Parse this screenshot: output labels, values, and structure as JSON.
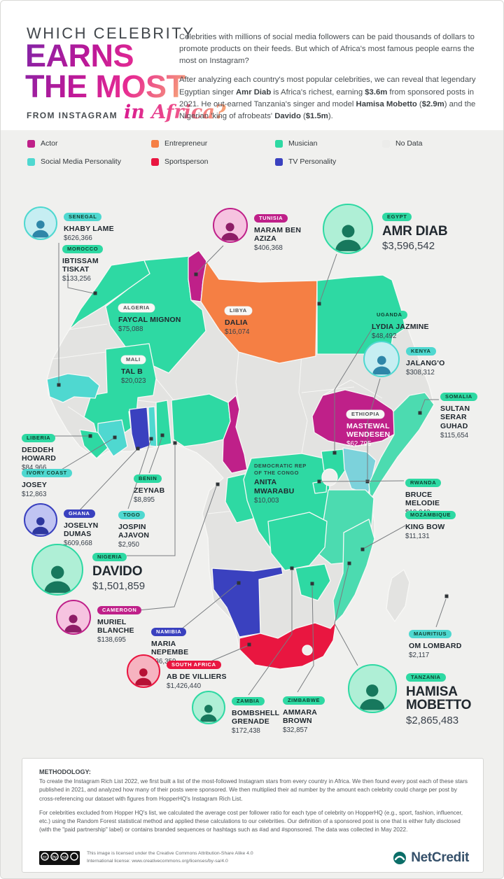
{
  "colors": {
    "actor": "#BF2089",
    "entrepreneur": "#F57F44",
    "musician": "#2ED9A3",
    "musician_alt": "#4CDBB0",
    "social": "#4FD8D0",
    "social_alt": "#7CD2DB",
    "sportsperson": "#E91640",
    "tv": "#3A41BF",
    "no_data": "#E3E3E1"
  },
  "header": {
    "kicker": "WHICH CELEBRITY",
    "title_line1": "EARNS",
    "title_line2": "THE MOST",
    "subtitle_prefix": "FROM INSTAGRAM",
    "subtitle_script": "in Africa?",
    "intro_p1": "Celebrities with millions of social media followers can be paid thousands of dollars to promote products on their feeds. But which of Africa's most famous people earns the most on Instagram?",
    "intro_p2_html": "After analyzing each country's most popular celebrities, we can reveal that legendary Egyptian singer <b>Amr Diab</b> is Africa's richest, earning <b>$3.6m</b> from sponsored posts in 2021. He out-earned Tanzania's singer and model <b>Hamisa Mobetto</b> (<b>$2.9m</b>) and the Nigerian 'king of afrobeats' <b>Davido</b> (<b>$1.5m</b>)."
  },
  "legend": {
    "items": [
      {
        "label": "Actor",
        "category": "actor"
      },
      {
        "label": "Entrepreneur",
        "category": "entrepreneur"
      },
      {
        "label": "Musician",
        "category": "musician"
      },
      {
        "label": "No Data",
        "category": "no_data"
      },
      {
        "label": "Social Media Personality",
        "category": "social"
      },
      {
        "label": "Sportsperson",
        "category": "sportsperson"
      },
      {
        "label": "TV Personality",
        "category": "tv"
      }
    ]
  },
  "callouts": [
    {
      "id": "senegal",
      "country": "SENEGAL",
      "name": "KHABY LAME",
      "value": "$626,366",
      "category": "social"
    },
    {
      "id": "morocco",
      "country": "MOROCCO",
      "name": "IBTISSAM TISKAT",
      "value": "$133,256",
      "category": "musician"
    },
    {
      "id": "tunisia",
      "country": "TUNISIA",
      "name": "MARAM BEN AZIZA",
      "value": "$406,368",
      "category": "actor"
    },
    {
      "id": "egypt",
      "country": "EGYPT",
      "name": "AMR DIAB",
      "value": "$3,596,542",
      "category": "musician"
    },
    {
      "id": "algeria",
      "country": "ALGERIA",
      "name": "FAYCAL MIGNON",
      "value": "$75,088",
      "category": "musician"
    },
    {
      "id": "libya",
      "country": "LIBYA",
      "name": "DALIA",
      "value": "$16,074",
      "category": "entrepreneur"
    },
    {
      "id": "mali",
      "country": "MALI",
      "name": "TAL B",
      "value": "$20,023",
      "category": "musician"
    },
    {
      "id": "uganda",
      "country": "UGANDA",
      "name": "LYDIA JAZMINE",
      "value": "$48,492",
      "category": "musician"
    },
    {
      "id": "kenya",
      "country": "KENYA",
      "name": "JALANG'O",
      "value": "$308,312",
      "category": "social"
    },
    {
      "id": "somalia",
      "country": "SOMALIA",
      "name": "SULTAN SERAR GUHAD",
      "value": "$115,654",
      "category": "musician"
    },
    {
      "id": "ethiopia",
      "country": "ETHIOPIA",
      "name": "MASTEWAL WENDESEN",
      "value": "$62,795",
      "category": "actor"
    },
    {
      "id": "liberia",
      "country": "LIBERIA",
      "name": "DEDDEH HOWARD",
      "value": "$84,966",
      "category": "musician"
    },
    {
      "id": "ivory_coast",
      "country": "IVORY COAST",
      "name": "JOSEY",
      "value": "$12,863",
      "category": "social"
    },
    {
      "id": "ghana",
      "country": "GHANA",
      "name": "JOSELYN DUMAS",
      "value": "$609,668",
      "category": "tv"
    },
    {
      "id": "togo",
      "country": "TOGO",
      "name": "JOSPIN AJAVON",
      "value": "$2,950",
      "category": "social"
    },
    {
      "id": "benin",
      "country": "BENIN",
      "name": "ZEYNAB",
      "value": "$8,895",
      "category": "musician"
    },
    {
      "id": "nigeria",
      "country": "NIGERIA",
      "name": "DAVIDO",
      "value": "$1,501,859",
      "category": "musician"
    },
    {
      "id": "cameroon",
      "country": "CAMEROON",
      "name": "MURIEL BLANCHE",
      "value": "$138,695",
      "category": "actor"
    },
    {
      "id": "drc",
      "country": "DEMOCRATIC REP OF THE CONGO",
      "name": "ANITA MWARABU",
      "value": "$10,003",
      "category": "musician"
    },
    {
      "id": "rwanda",
      "country": "RWANDA",
      "name": "BRUCE MELODIE",
      "value": "$19,042",
      "category": "musician"
    },
    {
      "id": "mozambique",
      "country": "MOZAMBIQUE",
      "name": "KING BOW",
      "value": "$11,131",
      "category": "musician"
    },
    {
      "id": "namibia",
      "country": "NAMIBIA",
      "name": "MARIA NEPEMBE",
      "value": "$36,359",
      "category": "tv"
    },
    {
      "id": "south_africa",
      "country": "SOUTH AFRICA",
      "name": "AB DE VILLIERS",
      "value": "$1,426,440",
      "category": "sportsperson"
    },
    {
      "id": "zambia",
      "country": "ZAMBIA",
      "name": "BOMBSHELL GRENADE",
      "value": "$172,438",
      "category": "musician"
    },
    {
      "id": "zimbabwe",
      "country": "ZIMBABWE",
      "name": "AMMARA BROWN",
      "value": "$32,857",
      "category": "musician"
    },
    {
      "id": "mauritius",
      "country": "MAURITIUS",
      "name": "OM LOMBARD",
      "value": "$2,117",
      "category": "social"
    },
    {
      "id": "tanzania",
      "country": "TANZANIA",
      "name": "HAMISA MOBETTO",
      "value": "$2,865,483",
      "category": "musician"
    }
  ],
  "methodology": {
    "title": "METHODOLOGY:",
    "p1": "To create the Instagram Rich List 2022, we first built a list of the most-followed Instagram stars from every country in Africa. We then found every post each of these stars published in 2021, and analyzed how many of their posts were sponsored. We then multiplied their ad number by the amount each celebrity could charge per post by cross-referencing our dataset with figures from HopperHQ's Instagram Rich List.",
    "p2": "For celebrities excluded from Hopper HQ's list, we calculated the average cost per follower ratio for each type of celebrity on HopperHQ (e.g., sport, fashion, influencer, etc.) using the Random Forest statistical method and applied these calculations to our celebrities. Our definition of a sponsored post is one that is either fully disclosed (with the \"paid partnership\" label) or contains branded sequences or hashtags such as #ad and #sponsored. The data was collected in May 2022.",
    "license_line1": "This image is licensed under the Creative Commons Attribution-Share Alike 4.0",
    "license_line2": "International license: www.creativecommons.org/licenses/by-sa/4.0",
    "brand": "NetCredit"
  }
}
